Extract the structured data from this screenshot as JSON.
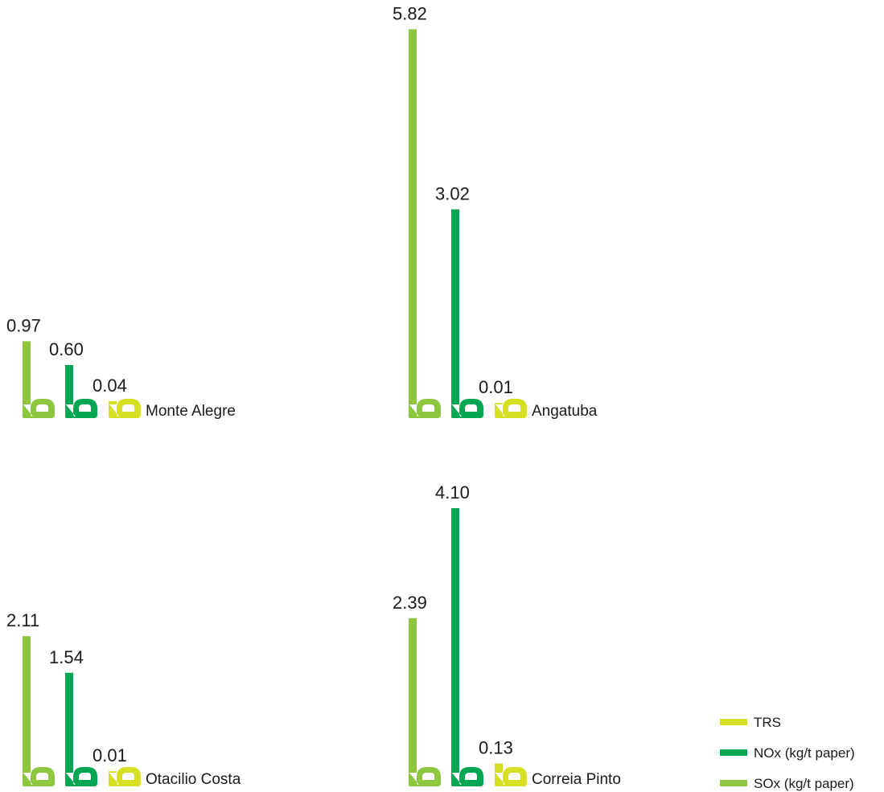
{
  "colors": {
    "sox": "#8dc63f",
    "nox": "#00a651",
    "trs": "#d7df23"
  },
  "legend": {
    "items": [
      {
        "key": "trs",
        "label": "TRS"
      },
      {
        "key": "nox",
        "label": "NOx (kg/t paper)"
      },
      {
        "key": "sox",
        "label": "SOx (kg/t paper)"
      }
    ]
  },
  "chart_data": {
    "type": "bar",
    "series_names": [
      "SOx (kg/t paper)",
      "NOx (kg/t paper)",
      "TRS"
    ],
    "legend_position": "bottom-right",
    "grid": false,
    "panels": [
      {
        "site": "Monte Alegre",
        "values": {
          "sox": 0.97,
          "nox": 0.6,
          "trs": 0.04
        },
        "labels": {
          "sox": "0.97",
          "nox": "0.60",
          "trs": "0.04"
        }
      },
      {
        "site": "Angatuba",
        "values": {
          "sox": 5.82,
          "nox": 3.02,
          "trs": 0.01
        },
        "labels": {
          "sox": "5.82",
          "nox": "3.02",
          "trs": "0.01"
        }
      },
      {
        "site": "Otacilio Costa",
        "values": {
          "sox": 2.11,
          "nox": 1.54,
          "trs": 0.01
        },
        "labels": {
          "sox": "2.11",
          "nox": "1.54",
          "trs": "0.01"
        }
      },
      {
        "site": "Correia Pinto",
        "values": {
          "sox": 2.39,
          "nox": 4.1,
          "trs": 0.13
        },
        "labels": {
          "sox": "2.39",
          "nox": "4.10",
          "trs": "0.13"
        }
      }
    ]
  }
}
